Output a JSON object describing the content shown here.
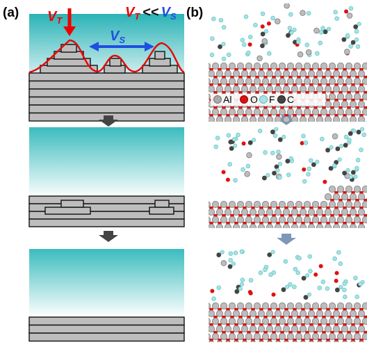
{
  "panel_a": {
    "label": "(a)",
    "vt": {
      "main": "V",
      "sub": "T"
    },
    "ratio": {
      "left": {
        "main": "V",
        "sub": "T"
      },
      "op": "<<",
      "right": {
        "main": "V",
        "sub": "S"
      }
    },
    "vs": {
      "main": "V",
      "sub": "S"
    }
  },
  "panel_b": {
    "label": "(b)",
    "legend": [
      {
        "label": "Al"
      },
      {
        "label": "O"
      },
      {
        "label": "F"
      },
      {
        "label": "C"
      }
    ]
  }
}
